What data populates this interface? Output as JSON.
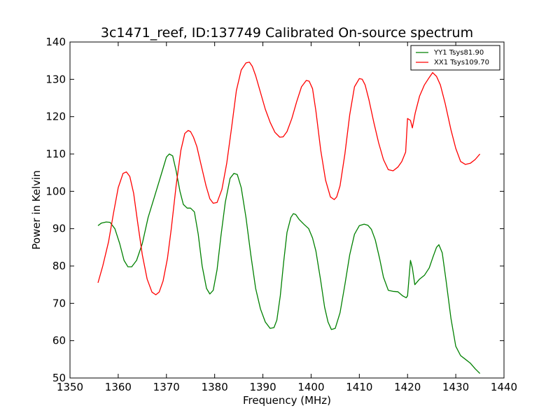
{
  "chart_data": {
    "type": "line",
    "title": "3c1471_reef, ID:137749 Calibrated On-source spectrum",
    "xlabel": "Frequency (MHz)",
    "ylabel": "Power in Kelvin",
    "xlim": [
      1350,
      1440
    ],
    "ylim": [
      50,
      140
    ],
    "xticks": [
      1350,
      1360,
      1370,
      1380,
      1390,
      1400,
      1410,
      1420,
      1430,
      1440
    ],
    "yticks": [
      50,
      60,
      70,
      80,
      90,
      100,
      110,
      120,
      130,
      140
    ],
    "grid": false,
    "legend_position": "top-right",
    "series": [
      {
        "name": "YY1 Tsys81.90",
        "color": "#008000",
        "x": [
          1355.8,
          1356.5,
          1357.5,
          1358.3,
          1359.3,
          1360.3,
          1361.2,
          1362.0,
          1362.8,
          1363.8,
          1365.0,
          1366.2,
          1367.5,
          1368.8,
          1370.0,
          1370.6,
          1371.3,
          1372.0,
          1372.8,
          1373.5,
          1374.3,
          1375.0,
          1375.8,
          1376.6,
          1377.4,
          1378.3,
          1379.0,
          1379.7,
          1380.5,
          1381.3,
          1382.2,
          1383.2,
          1384.0,
          1384.7,
          1385.5,
          1386.5,
          1387.5,
          1388.5,
          1389.5,
          1390.5,
          1391.5,
          1392.3,
          1392.9,
          1393.6,
          1394.3,
          1395.0,
          1395.8,
          1396.3,
          1396.8,
          1397.5,
          1398.5,
          1399.5,
          1400.3,
          1401.0,
          1402.0,
          1402.8,
          1403.5,
          1404.2,
          1405.0,
          1406.0,
          1407.0,
          1408.0,
          1409.0,
          1410.0,
          1411.0,
          1411.8,
          1412.5,
          1413.3,
          1414.2,
          1415.0,
          1416.0,
          1417.0,
          1418.0,
          1419.0,
          1419.7,
          1420.0,
          1420.6,
          1421.0,
          1421.5,
          1422.5,
          1423.5,
          1424.5,
          1425.3,
          1426.0,
          1426.5,
          1427.2,
          1428.0,
          1429.0,
          1430.0,
          1431.0,
          1432.0,
          1433.0,
          1434.0,
          1435.0
        ],
        "y": [
          90.8,
          91.5,
          91.8,
          91.7,
          90.0,
          86.0,
          81.5,
          79.8,
          79.8,
          81.5,
          86.0,
          93.0,
          98.5,
          104.0,
          109.2,
          110.0,
          109.5,
          105.5,
          100.0,
          96.5,
          95.5,
          95.5,
          94.5,
          88.5,
          80.0,
          74.0,
          72.5,
          73.5,
          79.0,
          88.0,
          97.0,
          103.5,
          104.8,
          104.5,
          101.0,
          93.0,
          83.0,
          74.0,
          68.5,
          65.0,
          63.3,
          63.5,
          65.5,
          72.0,
          81.0,
          89.0,
          93.0,
          94.0,
          93.8,
          92.5,
          91.2,
          90.0,
          87.5,
          84.0,
          76.0,
          69.0,
          65.0,
          63.0,
          63.3,
          67.5,
          75.0,
          83.0,
          88.5,
          90.8,
          91.2,
          90.9,
          89.8,
          87.0,
          82.0,
          77.0,
          73.5,
          73.2,
          73.1,
          72.0,
          71.5,
          72.0,
          81.5,
          79.5,
          75.0,
          76.5,
          77.5,
          79.5,
          82.5,
          85.0,
          85.7,
          83.5,
          76.0,
          66.0,
          58.5,
          56.0,
          55.0,
          54.0,
          52.5,
          51.2
        ]
      },
      {
        "name": "XX1 Tsys109.70",
        "color": "#ff0000",
        "x": [
          1355.8,
          1356.8,
          1358.0,
          1359.0,
          1360.0,
          1361.0,
          1361.7,
          1362.4,
          1363.2,
          1364.0,
          1365.0,
          1366.0,
          1367.0,
          1367.8,
          1368.5,
          1369.3,
          1370.2,
          1371.0,
          1372.0,
          1373.0,
          1373.8,
          1374.5,
          1375.0,
          1375.6,
          1376.3,
          1377.2,
          1378.2,
          1379.0,
          1379.7,
          1380.5,
          1381.5,
          1382.5,
          1383.5,
          1384.5,
          1385.5,
          1386.5,
          1387.2,
          1387.8,
          1388.5,
          1389.5,
          1390.5,
          1391.5,
          1392.5,
          1393.5,
          1394.2,
          1395.0,
          1396.0,
          1397.0,
          1398.0,
          1399.0,
          1399.6,
          1400.3,
          1401.0,
          1402.0,
          1403.0,
          1404.0,
          1404.8,
          1405.3,
          1406.0,
          1407.0,
          1408.0,
          1409.0,
          1410.0,
          1410.6,
          1411.2,
          1412.0,
          1413.0,
          1414.0,
          1415.0,
          1416.0,
          1417.0,
          1418.0,
          1418.8,
          1419.6,
          1420.0,
          1420.6,
          1421.0,
          1421.6,
          1422.5,
          1423.5,
          1424.5,
          1425.2,
          1426.0,
          1426.8,
          1427.8,
          1429.0,
          1430.0,
          1431.0,
          1432.0,
          1433.0,
          1434.0,
          1435.0
        ],
        "y": [
          75.5,
          80.0,
          86.5,
          94.0,
          101.0,
          104.8,
          105.2,
          104.0,
          99.5,
          92.0,
          83.0,
          76.5,
          73.0,
          72.3,
          73.0,
          76.0,
          82.0,
          90.0,
          101.5,
          111.0,
          115.5,
          116.3,
          116.0,
          114.5,
          112.0,
          107.0,
          101.5,
          98.0,
          96.8,
          97.0,
          100.5,
          107.5,
          117.0,
          127.0,
          132.5,
          134.4,
          134.6,
          133.5,
          131.0,
          126.5,
          122.0,
          118.5,
          115.8,
          114.5,
          114.6,
          116.0,
          119.5,
          124.0,
          128.0,
          129.7,
          129.5,
          127.5,
          121.5,
          111.0,
          103.0,
          98.5,
          97.8,
          98.5,
          101.5,
          110.0,
          120.5,
          128.0,
          130.2,
          130.0,
          128.5,
          124.5,
          118.5,
          113.0,
          108.5,
          105.8,
          105.5,
          106.5,
          108.0,
          110.5,
          119.5,
          119.0,
          117.0,
          121.0,
          125.5,
          128.5,
          130.5,
          131.8,
          130.8,
          128.5,
          123.5,
          116.5,
          111.5,
          108.0,
          107.2,
          107.5,
          108.5,
          110.0
        ]
      }
    ]
  }
}
